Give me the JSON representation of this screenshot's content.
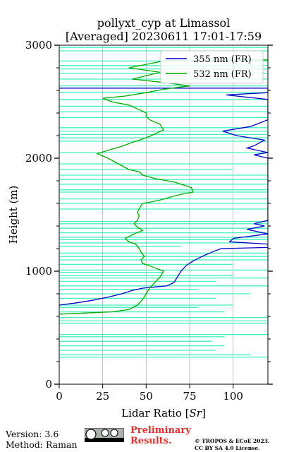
{
  "chart_data": {
    "type": "line",
    "title_line1": "pollyxt_cyp at Limassol",
    "title_line2": "[Averaged] 20230611 17:01-17:59",
    "xlabel": "Lidar Ratio [",
    "xlabel_italic": "Sr",
    "xlabel_end": "]",
    "ylabel": "Height (m)",
    "xlim": [
      0,
      120
    ],
    "ylim": [
      0,
      3000
    ],
    "xticks": [
      0,
      25,
      50,
      75,
      100
    ],
    "yticks": [
      0,
      1000,
      2000,
      3000
    ],
    "grid": "x",
    "legend_position": "top-right",
    "series": [
      {
        "name": "355 nm (FR)",
        "color": "#0000cc",
        "points": [
          [
            0,
            700
          ],
          [
            10,
            720
          ],
          [
            20,
            745
          ],
          [
            28,
            770
          ],
          [
            36,
            800
          ],
          [
            42,
            830
          ],
          [
            48,
            850
          ],
          [
            55,
            860
          ],
          [
            62,
            870
          ],
          [
            66,
            900
          ],
          [
            68,
            950
          ],
          [
            70,
            1000
          ],
          [
            73,
            1050
          ],
          [
            77,
            1090
          ],
          [
            82,
            1130
          ],
          [
            88,
            1170
          ],
          [
            93,
            1200
          ],
          [
            120,
            1210
          ],
          [
            120,
            1240
          ],
          [
            98,
            1260
          ],
          [
            100,
            1290
          ],
          [
            110,
            1310
          ],
          [
            120,
            1330
          ],
          [
            108,
            1370
          ],
          [
            118,
            1400
          ],
          [
            112,
            1420
          ],
          [
            120,
            1450
          ],
          [
            120,
            2000
          ],
          [
            112,
            2030
          ],
          [
            120,
            2050
          ],
          [
            108,
            2090
          ],
          [
            112,
            2110
          ],
          [
            118,
            2160
          ],
          [
            102,
            2200
          ],
          [
            94,
            2240
          ],
          [
            110,
            2280
          ],
          [
            120,
            2340
          ],
          [
            120,
            2520
          ],
          [
            96,
            2560
          ],
          [
            120,
            2580
          ],
          [
            120,
            2620
          ],
          [
            0,
            2620
          ]
        ]
      },
      {
        "name": "532 nm (FR)",
        "color": "#00aa00",
        "points": [
          [
            0,
            620
          ],
          [
            15,
            630
          ],
          [
            30,
            640
          ],
          [
            40,
            660
          ],
          [
            45,
            700
          ],
          [
            48,
            750
          ],
          [
            50,
            800
          ],
          [
            52,
            850
          ],
          [
            55,
            900
          ],
          [
            58,
            950
          ],
          [
            60,
            1000
          ],
          [
            55,
            1030
          ],
          [
            48,
            1070
          ],
          [
            47,
            1100
          ],
          [
            49,
            1130
          ],
          [
            47,
            1170
          ],
          [
            46,
            1200
          ],
          [
            44,
            1240
          ],
          [
            40,
            1260
          ],
          [
            38,
            1290
          ],
          [
            43,
            1330
          ],
          [
            48,
            1360
          ],
          [
            45,
            1390
          ],
          [
            43,
            1420
          ],
          [
            45,
            1450
          ],
          [
            46,
            1490
          ],
          [
            45,
            1520
          ],
          [
            46,
            1550
          ],
          [
            47,
            1580
          ],
          [
            48,
            1600
          ],
          [
            52,
            1610
          ],
          [
            58,
            1630
          ],
          [
            65,
            1660
          ],
          [
            70,
            1680
          ],
          [
            77,
            1700
          ],
          [
            76,
            1740
          ],
          [
            72,
            1760
          ],
          [
            66,
            1790
          ],
          [
            55,
            1820
          ],
          [
            48,
            1850
          ],
          [
            46,
            1880
          ],
          [
            40,
            1900
          ],
          [
            34,
            1950
          ],
          [
            28,
            2000
          ],
          [
            22,
            2040
          ],
          [
            28,
            2070
          ],
          [
            35,
            2100
          ],
          [
            42,
            2140
          ],
          [
            48,
            2170
          ],
          [
            53,
            2200
          ],
          [
            60,
            2250
          ],
          [
            58,
            2300
          ],
          [
            52,
            2340
          ],
          [
            50,
            2370
          ],
          [
            50,
            2400
          ],
          [
            46,
            2430
          ],
          [
            40,
            2470
          ],
          [
            30,
            2500
          ],
          [
            25,
            2530
          ],
          [
            38,
            2550
          ],
          [
            50,
            2580
          ],
          [
            60,
            2610
          ],
          [
            75,
            2640
          ],
          [
            60,
            2670
          ],
          [
            42,
            2700
          ],
          [
            50,
            2730
          ],
          [
            58,
            2760
          ],
          [
            40,
            2800
          ],
          [
            60,
            2860
          ],
          [
            120,
            2870
          ]
        ]
      }
    ],
    "background_overlay": {
      "color": "#40f0c0",
      "description_free": true,
      "segments": [
        [
          0,
          120,
          240
        ],
        [
          0,
          110,
          260
        ],
        [
          0,
          90,
          300
        ],
        [
          0,
          95,
          340
        ],
        [
          0,
          88,
          380
        ],
        [
          0,
          95,
          420
        ],
        [
          0,
          120,
          440
        ],
        [
          0,
          120,
          540
        ],
        [
          0,
          120,
          560
        ],
        [
          0,
          120,
          590
        ],
        [
          0,
          95,
          640
        ],
        [
          0,
          80,
          680
        ],
        [
          0,
          100,
          700
        ],
        [
          0,
          90,
          760
        ],
        [
          0,
          110,
          800
        ],
        [
          0,
          80,
          840
        ],
        [
          0,
          120,
          870
        ],
        [
          0,
          90,
          910
        ],
        [
          0,
          120,
          940
        ],
        [
          0,
          100,
          960
        ],
        [
          0,
          60,
          990
        ],
        [
          0,
          120,
          1010
        ],
        [
          0,
          100,
          1060
        ],
        [
          0,
          120,
          1100
        ],
        [
          0,
          120,
          1130
        ],
        [
          0,
          120,
          1160
        ],
        [
          0,
          70,
          1220
        ],
        [
          0,
          110,
          1250
        ],
        [
          0,
          120,
          1280
        ],
        [
          0,
          120,
          1300
        ],
        [
          0,
          120,
          1340
        ],
        [
          0,
          120,
          1380
        ],
        [
          0,
          120,
          1420
        ],
        [
          0,
          120,
          1440
        ],
        [
          0,
          120,
          1550
        ],
        [
          0,
          120,
          1600
        ],
        [
          0,
          120,
          1640
        ],
        [
          0,
          120,
          1700
        ],
        [
          0,
          120,
          1720
        ],
        [
          0,
          120,
          1770
        ],
        [
          0,
          120,
          1810
        ],
        [
          0,
          120,
          1850
        ],
        [
          0,
          100,
          1900
        ],
        [
          0,
          120,
          1950
        ],
        [
          0,
          120,
          2050
        ],
        [
          0,
          120,
          2150
        ],
        [
          0,
          120,
          2180
        ],
        [
          0,
          120,
          2210
        ],
        [
          0,
          120,
          2240
        ],
        [
          0,
          120,
          2270
        ],
        [
          0,
          120,
          2360
        ],
        [
          0,
          120,
          2410
        ],
        [
          0,
          120,
          2460
        ],
        [
          0,
          120,
          2520
        ],
        [
          0,
          120,
          2580
        ],
        [
          0,
          120,
          2640
        ],
        [
          0,
          120,
          2700
        ],
        [
          0,
          120,
          2750
        ],
        [
          0,
          120,
          2790
        ],
        [
          0,
          120,
          2820
        ],
        [
          0,
          120,
          2860
        ],
        [
          0,
          120,
          2950
        ],
        [
          0,
          120,
          2980
        ]
      ]
    }
  },
  "footer": {
    "version": "Version: 3.6",
    "method": "Method: Raman",
    "preliminary_line1": "Preliminary",
    "preliminary_line2": "Results.",
    "copyright_line1": "© TROPOS & ECoE 2023.",
    "copyright_line2": "CC BY SA 4.0 License."
  }
}
